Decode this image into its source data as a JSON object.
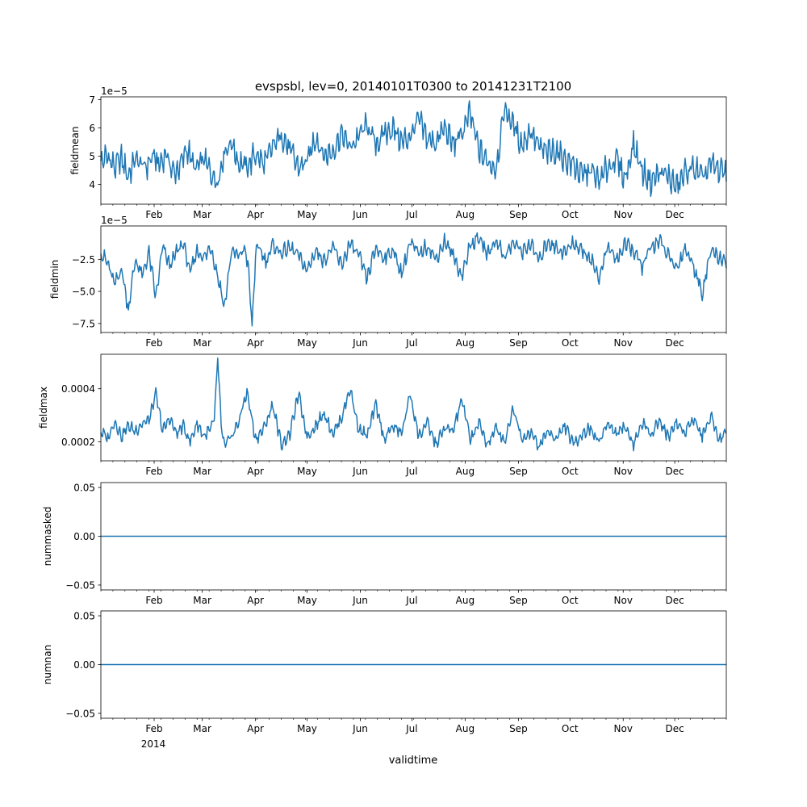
{
  "chart_data": [
    {
      "type": "line",
      "title": "evspsbl, lev=0, 20140101T0300 to 20141231T2100",
      "ylabel": "fieldmean",
      "offset_text": "1e−5",
      "ylim": [
        3.3,
        7.1
      ],
      "yticks": [
        4,
        5,
        6,
        7
      ],
      "ytick_labels": [
        "4",
        "5",
        "6",
        "7"
      ],
      "color": "#1f77b4",
      "series": [
        {
          "name": "fieldmean",
          "x": [
            0,
            4,
            8,
            12,
            16,
            20,
            26,
            30,
            34,
            38,
            42,
            46,
            50,
            55,
            60,
            64,
            68,
            72,
            76,
            80,
            85,
            90,
            95,
            100,
            105,
            110,
            115,
            120,
            125,
            130,
            135,
            140,
            145,
            150,
            155,
            160,
            165,
            170,
            175,
            180,
            185,
            190,
            195,
            200,
            205,
            210,
            215,
            220,
            225,
            230,
            235,
            240,
            245,
            250,
            255,
            260,
            265,
            270,
            275,
            280,
            285,
            290,
            295,
            300,
            305,
            310,
            315,
            320,
            325,
            330,
            335,
            340,
            345,
            350,
            355,
            360,
            364
          ],
          "values": [
            4.8,
            5.0,
            4.6,
            4.9,
            4.3,
            4.9,
            4.6,
            5.0,
            4.7,
            5.1,
            4.4,
            4.6,
            5.3,
            4.5,
            4.9,
            4.4,
            4.1,
            5.2,
            5.5,
            4.8,
            4.6,
            5.1,
            4.7,
            5.3,
            5.8,
            5.2,
            4.6,
            4.8,
            5.7,
            5.0,
            5.2,
            5.8,
            5.3,
            5.7,
            6.1,
            5.4,
            5.8,
            6.0,
            5.5,
            5.7,
            6.3,
            5.6,
            5.5,
            6.0,
            5.4,
            5.8,
            6.5,
            5.2,
            4.8,
            4.6,
            6.7,
            6.1,
            5.4,
            5.9,
            5.3,
            5.1,
            5.2,
            4.9,
            4.7,
            4.3,
            4.5,
            4.1,
            4.6,
            4.9,
            4.2,
            5.4,
            4.5,
            4.1,
            4.4,
            4.3,
            3.9,
            4.4,
            4.6,
            4.2,
            4.7,
            4.5,
            4.5
          ]
        }
      ]
    },
    {
      "type": "line",
      "title": "",
      "ylabel": "fieldmin",
      "offset_text": "1e−5",
      "ylim": [
        -8.2,
        0.1
      ],
      "yticks": [
        -7.5,
        -5.0,
        -2.5
      ],
      "ytick_labels": [
        "−7.5",
        "−5.0",
        "−2.5"
      ],
      "color": "#1f77b4",
      "series": [
        {
          "name": "fieldmin",
          "x": [
            0,
            4,
            8,
            12,
            16,
            20,
            24,
            28,
            32,
            36,
            40,
            44,
            48,
            52,
            56,
            60,
            64,
            68,
            72,
            76,
            80,
            84,
            86,
            88,
            90,
            92,
            96,
            100,
            105,
            110,
            115,
            120,
            125,
            130,
            135,
            140,
            145,
            150,
            155,
            160,
            165,
            170,
            175,
            180,
            185,
            190,
            195,
            200,
            205,
            210,
            215,
            220,
            225,
            230,
            235,
            240,
            245,
            250,
            255,
            260,
            265,
            270,
            275,
            280,
            285,
            290,
            295,
            300,
            305,
            310,
            315,
            320,
            325,
            330,
            335,
            340,
            345,
            350,
            355,
            360,
            364
          ],
          "values": [
            -2.0,
            -2.8,
            -4.5,
            -3.2,
            -6.4,
            -2.5,
            -3.8,
            -2.0,
            -5.5,
            -1.5,
            -3.0,
            -2.0,
            -1.2,
            -3.6,
            -1.8,
            -2.4,
            -1.5,
            -3.8,
            -6.2,
            -1.8,
            -2.3,
            -1.6,
            -3.5,
            -7.8,
            -2.2,
            -1.5,
            -2.7,
            -1.4,
            -2.0,
            -1.6,
            -2.2,
            -3.4,
            -1.8,
            -2.6,
            -1.5,
            -3.0,
            -1.3,
            -2.2,
            -4.0,
            -1.6,
            -2.4,
            -1.8,
            -3.6,
            -1.2,
            -2.1,
            -1.4,
            -2.5,
            -1.1,
            -2.2,
            -3.8,
            -1.4,
            -0.8,
            -2.1,
            -1.0,
            -2.3,
            -1.2,
            -1.9,
            -1.3,
            -2.6,
            -1.1,
            -1.6,
            -2.0,
            -1.2,
            -1.8,
            -2.4,
            -4.0,
            -1.5,
            -2.5,
            -1.4,
            -1.8,
            -3.1,
            -1.6,
            -1.0,
            -2.2,
            -3.2,
            -1.6,
            -3.0,
            -5.1,
            -1.8,
            -2.4,
            -2.6
          ]
        }
      ]
    },
    {
      "type": "line",
      "title": "",
      "ylabel": "fieldmax",
      "offset_text": "",
      "ylim": [
        0.000128,
        0.00053
      ],
      "yticks": [
        0.0002,
        0.0004
      ],
      "ytick_labels": [
        "0.0002",
        "0.0004"
      ],
      "color": "#1f77b4",
      "series": [
        {
          "name": "fieldmax",
          "x": [
            0,
            4,
            8,
            12,
            16,
            20,
            24,
            28,
            32,
            36,
            40,
            44,
            48,
            52,
            56,
            60,
            64,
            66,
            68,
            70,
            72,
            76,
            80,
            85,
            90,
            95,
            100,
            105,
            110,
            115,
            120,
            125,
            130,
            135,
            140,
            145,
            150,
            155,
            160,
            165,
            170,
            175,
            180,
            185,
            190,
            195,
            200,
            205,
            210,
            215,
            220,
            225,
            230,
            235,
            240,
            245,
            250,
            255,
            260,
            265,
            270,
            275,
            280,
            285,
            290,
            295,
            300,
            305,
            310,
            315,
            320,
            325,
            330,
            335,
            340,
            345,
            350,
            355,
            360,
            364
          ],
          "values": [
            0.00024,
            0.00021,
            0.00028,
            0.00022,
            0.00026,
            0.00024,
            0.00027,
            0.00028,
            0.00038,
            0.00024,
            0.00029,
            0.00023,
            0.00026,
            0.0002,
            0.00027,
            0.00022,
            0.00025,
            0.00028,
            0.00052,
            0.00026,
            0.00018,
            0.00022,
            0.00027,
            0.00039,
            0.00021,
            0.00025,
            0.00034,
            0.00019,
            0.00023,
            0.00038,
            0.00022,
            0.00026,
            0.00031,
            0.00023,
            0.00029,
            0.0004,
            0.00025,
            0.00022,
            0.00034,
            0.00021,
            0.00026,
            0.00023,
            0.00038,
            0.00022,
            0.00027,
            0.00019,
            0.00025,
            0.00024,
            0.00036,
            0.00021,
            0.00027,
            0.00019,
            0.00025,
            0.0002,
            0.00033,
            0.00021,
            0.00024,
            0.00018,
            0.00024,
            0.00021,
            0.00026,
            0.00019,
            0.00023,
            0.00025,
            0.0002,
            0.00027,
            0.00023,
            0.00026,
            0.00019,
            0.00027,
            0.00023,
            0.00028,
            0.00022,
            0.00027,
            0.00024,
            0.00029,
            0.00022,
            0.0003,
            0.00021,
            0.00024
          ]
        }
      ]
    },
    {
      "type": "line",
      "title": "",
      "ylabel": "nummasked",
      "offset_text": "",
      "ylim": [
        -0.055,
        0.055
      ],
      "yticks": [
        -0.05,
        0.0,
        0.05
      ],
      "ytick_labels": [
        "−0.05",
        "0.00",
        "0.05"
      ],
      "color": "#1f77b4",
      "series": [
        {
          "name": "nummasked",
          "x": [
            0,
            364
          ],
          "values": [
            0,
            0
          ]
        }
      ]
    },
    {
      "type": "line",
      "title": "",
      "ylabel": "numnan",
      "xlabel": "validtime",
      "offset_text": "",
      "ylim": [
        -0.055,
        0.055
      ],
      "yticks": [
        -0.05,
        0.0,
        0.05
      ],
      "ytick_labels": [
        "−0.05",
        "0.00",
        "0.05"
      ],
      "color": "#1f77b4",
      "series": [
        {
          "name": "numnan",
          "x": [
            0,
            364
          ],
          "values": [
            0,
            0
          ]
        }
      ]
    }
  ],
  "x_axis": {
    "range_days": [
      0,
      364
    ],
    "month_days": [
      31,
      59,
      90,
      120,
      151,
      181,
      212,
      243,
      273,
      304,
      334
    ],
    "month_labels": [
      "Feb",
      "Mar",
      "Apr",
      "May",
      "Jun",
      "Jul",
      "Aug",
      "Sep",
      "Oct",
      "Nov",
      "Dec"
    ],
    "year_label": "2014"
  }
}
